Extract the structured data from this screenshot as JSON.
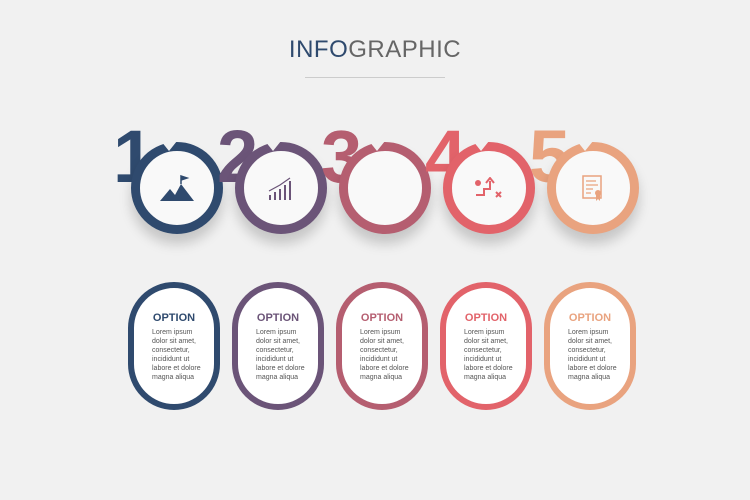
{
  "title": {
    "part1": "INFO",
    "part2": "GRAPHIC"
  },
  "steps": [
    {
      "number": "1",
      "color": "#2f4a6e",
      "icon": "mountain-flag-icon",
      "option": "OPTION",
      "text": "Lorem ipsum dolor sit amet, consectetur, incididunt ut labore et dolore magna aliqua"
    },
    {
      "number": "2",
      "color": "#6b5478",
      "icon": "growth-chart-icon",
      "option": "OPTION",
      "text": "Lorem ipsum dolor sit amet, consectetur, incididunt ut labore et dolore magna aliqua"
    },
    {
      "number": "3",
      "color": "#b55e70",
      "icon": "head-fire-icon",
      "option": "OPTION",
      "text": "Lorem ipsum dolor sit amet, consectetur, incididunt ut labore et dolore magna aliqua"
    },
    {
      "number": "4",
      "color": "#e2636a",
      "icon": "strategy-steps-icon",
      "option": "OPTION",
      "text": "Lorem ipsum dolor sit amet, consectetur, incididunt ut labore et dolore magna aliqua"
    },
    {
      "number": "5",
      "color": "#e9a37f",
      "icon": "certificate-icon",
      "option": "OPTION",
      "text": "Lorem ipsum dolor sit amet, consectetur, incididunt ut labore et dolore magna aliqua"
    }
  ]
}
